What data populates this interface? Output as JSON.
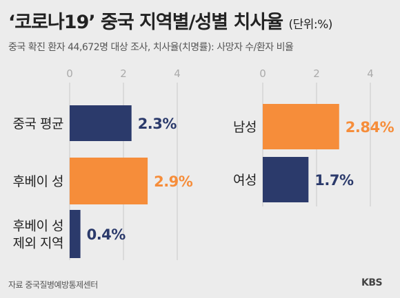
{
  "title": "‘코로나19’ 중국 지역별/성별 치사율",
  "unit": "(단위:%)",
  "subtitle": "중국 확진 환자 44,672명 대상 조사, 치사율(치명률): 사망자 수/환자 비율",
  "source": "자료  중국질병예방통제센터",
  "logo": "KBS",
  "colors": {
    "navy": "#2b3a6b",
    "orange": "#f68d3a",
    "grid": "#c8c8c8",
    "tick": "#aaaaaa"
  },
  "chart_data": [
    {
      "type": "bar",
      "orientation": "horizontal",
      "xlim": [
        0,
        4
      ],
      "ticks": [
        "0",
        "2",
        "4"
      ],
      "grid": true,
      "categories": [
        {
          "lines": [
            "중국 평균"
          ]
        },
        {
          "lines": [
            "후베이 성"
          ]
        },
        {
          "lines": [
            "후베이 성",
            "제외 지역"
          ]
        }
      ],
      "values": [
        2.3,
        2.9,
        0.4
      ],
      "value_labels": [
        "2.3%",
        "2.9%",
        "0.4%"
      ],
      "colors": [
        "#2b3a6b",
        "#f68d3a",
        "#2b3a6b"
      ]
    },
    {
      "type": "bar",
      "orientation": "horizontal",
      "xlim": [
        0,
        4
      ],
      "ticks": [
        "0",
        "2",
        "4"
      ],
      "grid": true,
      "categories": [
        {
          "lines": [
            "남성"
          ]
        },
        {
          "lines": [
            "여성"
          ]
        }
      ],
      "values": [
        2.84,
        1.7
      ],
      "value_labels": [
        "2.84%",
        "1.7%"
      ],
      "colors": [
        "#f68d3a",
        "#2b3a6b"
      ]
    }
  ]
}
